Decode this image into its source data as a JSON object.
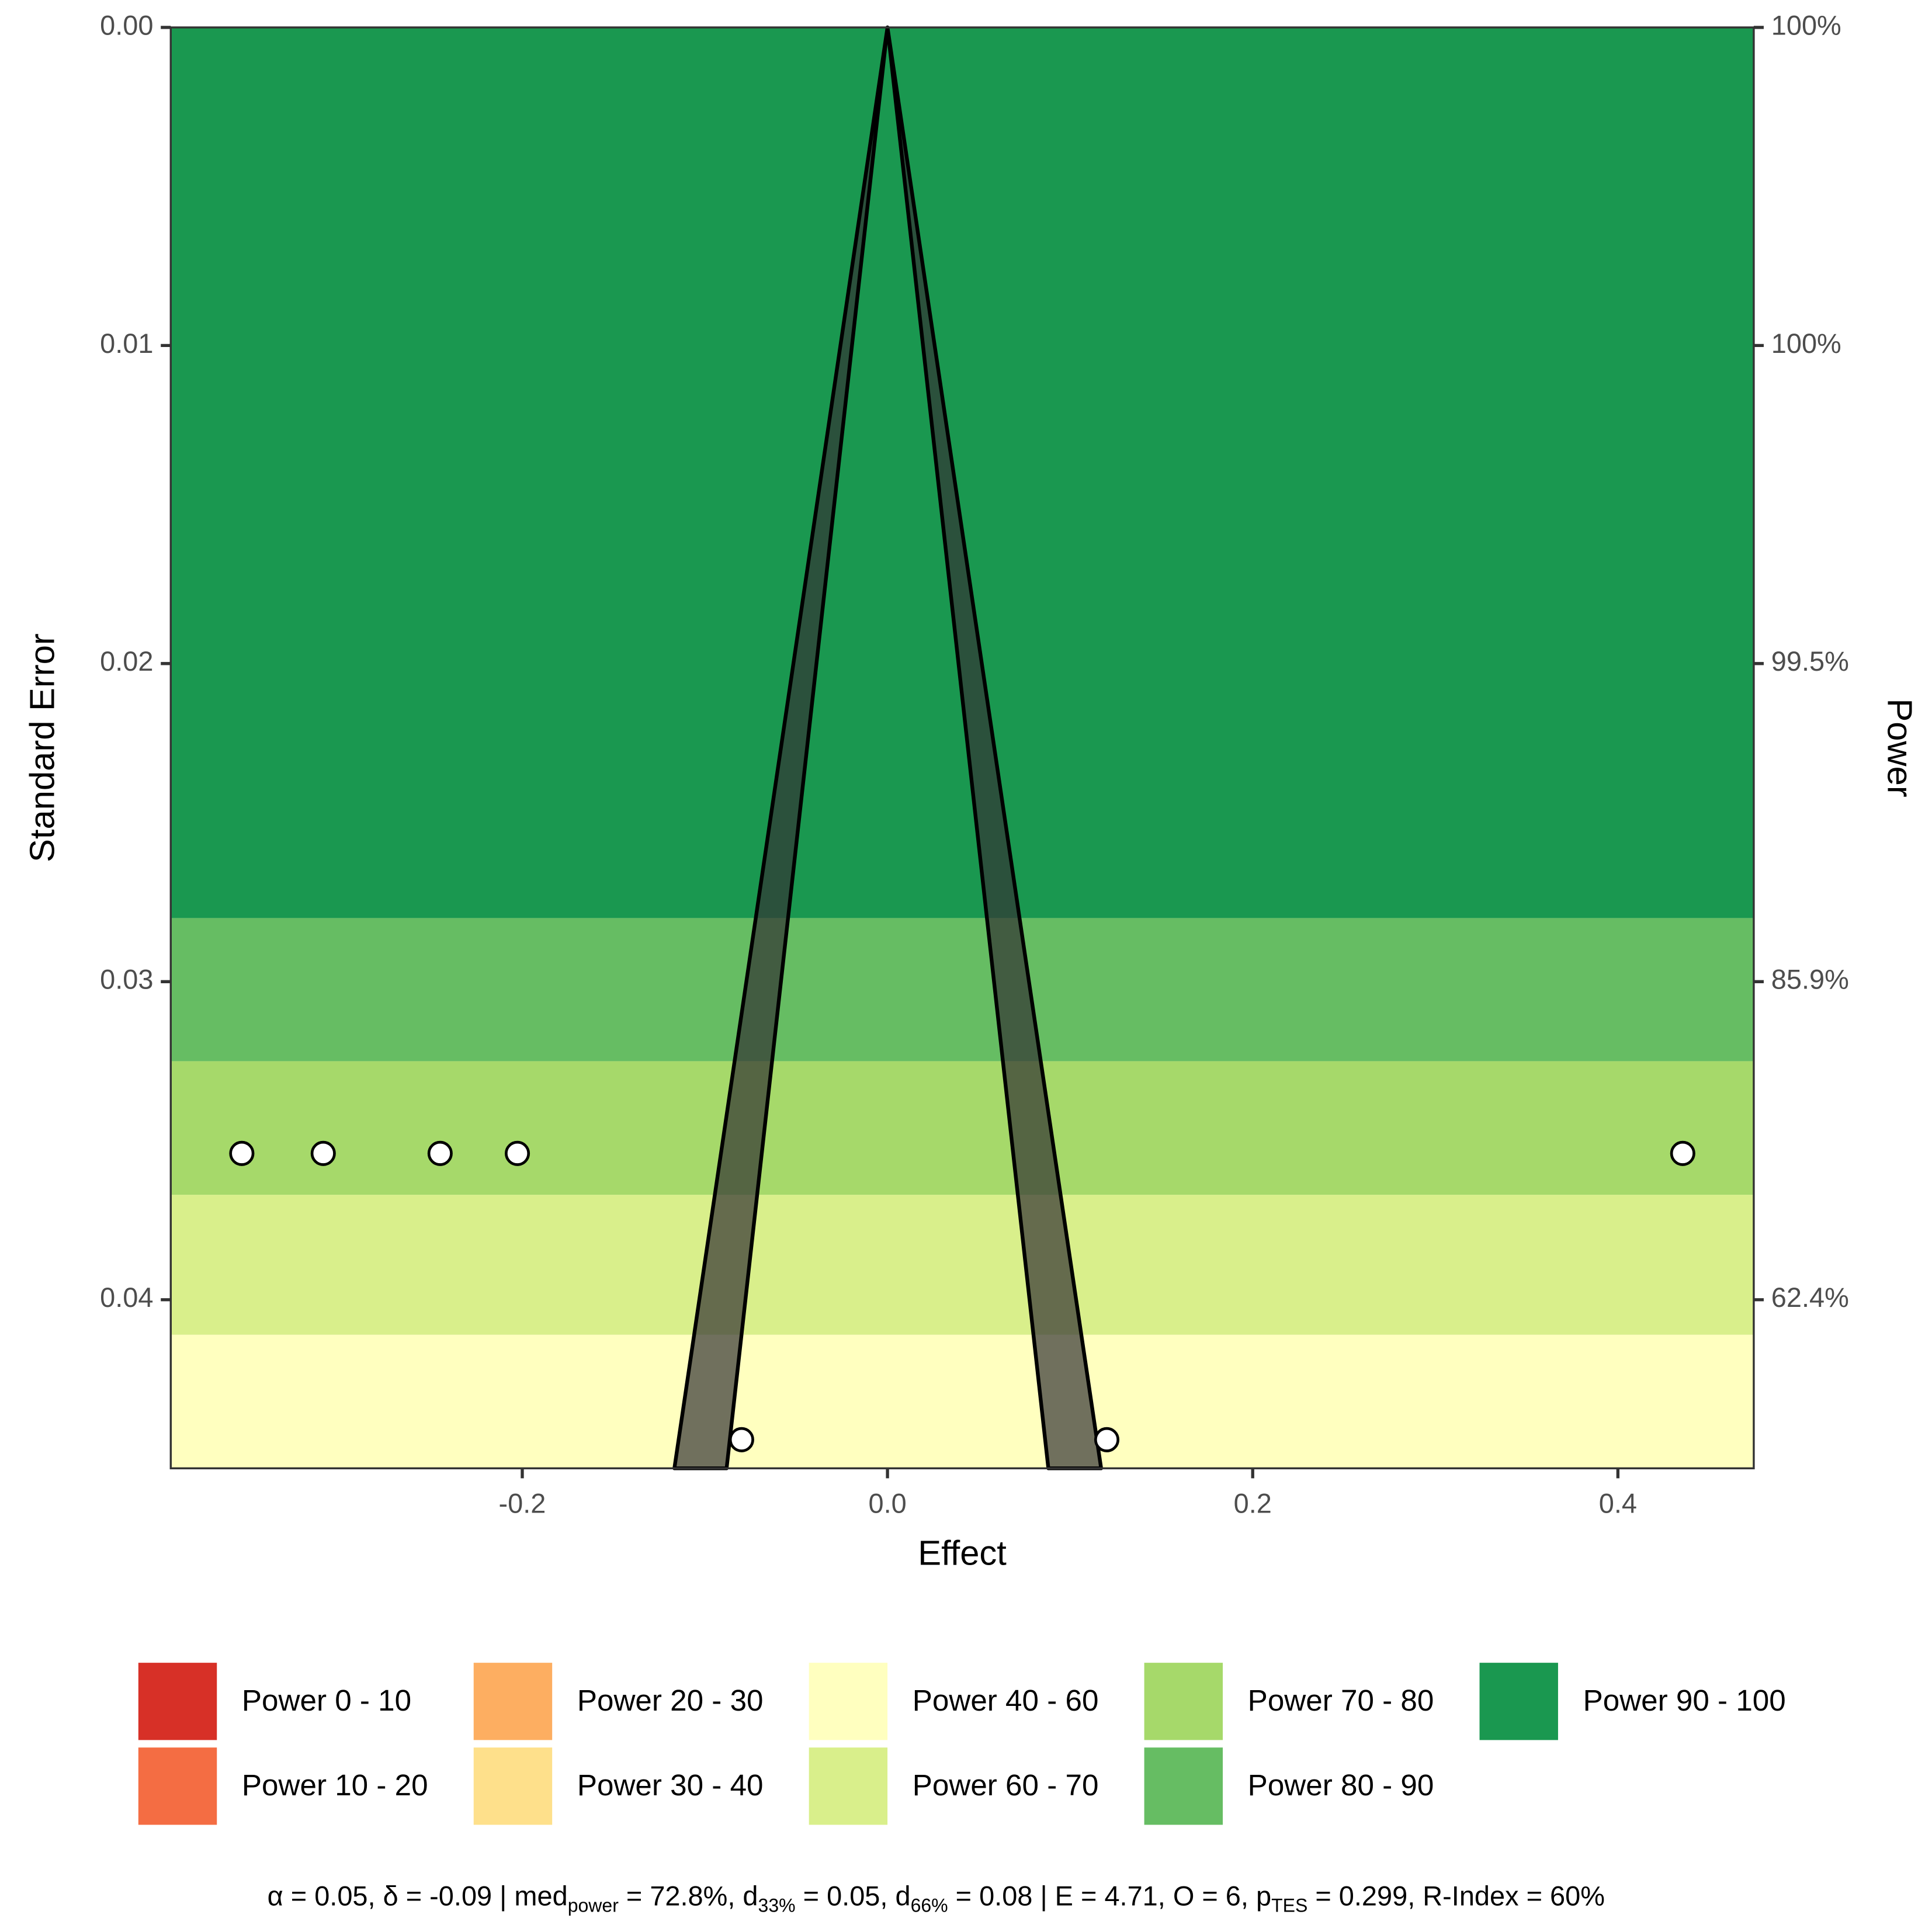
{
  "chart_data": {
    "type": "funnel",
    "xlabel": "Effect",
    "ylabel": "Standard Error",
    "y2label": "Power",
    "xlim": [
      -0.3925,
      0.4744
    ],
    "ylim": [
      0,
      0.0453
    ],
    "y_reversed": true,
    "xticks": [
      -0.2,
      {
        "value": 0,
        "label": "0.0"
      },
      0.2,
      0.4
    ],
    "yticks": [
      {
        "value": 0,
        "label": "0.00"
      },
      {
        "value": 0.01,
        "label": "0.01"
      },
      {
        "value": 0.02,
        "label": "0.02"
      },
      {
        "value": 0.03,
        "label": "0.03"
      },
      {
        "value": 0.04,
        "label": "0.04"
      }
    ],
    "y2tick_labels": [
      "100%",
      "100%",
      "99.5%",
      "85.9%",
      "62.4%"
    ],
    "series": [
      {
        "name": "Power 0 - 10",
        "color": "#d73027"
      },
      {
        "name": "Power 10 - 20",
        "color": "#f46d43"
      },
      {
        "name": "Power 20 - 30",
        "color": "#fdae61"
      },
      {
        "name": "Power 30 - 40",
        "color": "#fee08b"
      },
      {
        "name": "Power 40 - 60",
        "color": "#ffffbf",
        "se_range": [
          0.0411,
          0.0453
        ]
      },
      {
        "name": "Power 60 - 70",
        "color": "#d9ef8b",
        "se_range": [
          0.0367,
          0.0411
        ]
      },
      {
        "name": "Power 70 - 80",
        "color": "#a6d96a",
        "se_range": [
          0.0325,
          0.0367
        ]
      },
      {
        "name": "Power 80 - 90",
        "color": "#66bd63",
        "se_range": [
          0.028,
          0.0325
        ]
      },
      {
        "name": "Power 90 - 100",
        "color": "#1a9850",
        "se_range": [
          0,
          0.028
        ]
      }
    ],
    "funnel": {
      "color": "#333333",
      "apex": [
        0,
        0
      ],
      "inner": [
        -0.0881,
        0.0881
      ],
      "outer": [
        -0.1167,
        0.117
      ]
    },
    "points": {
      "x": [
        -0.3536,
        -0.309,
        -0.245,
        -0.2027,
        0.4355,
        -0.0799,
        0.1201
      ],
      "y": [
        0.0354,
        0.0354,
        0.0354,
        0.0354,
        0.0354,
        0.0444,
        0.0444
      ]
    },
    "caption": [
      {
        "text": "α = 0.05, δ = -0.09 | med"
      },
      {
        "sub": "power"
      },
      {
        "text": " = 72.8%, d"
      },
      {
        "sub": "33%"
      },
      {
        "text": " = 0.05, d"
      },
      {
        "sub": "66%"
      },
      {
        "text": " = 0.08 | E = 4.71, O = 6, p"
      },
      {
        "sub": "TES"
      },
      {
        "text": " = 0.299, R-Index = 60%"
      }
    ]
  }
}
